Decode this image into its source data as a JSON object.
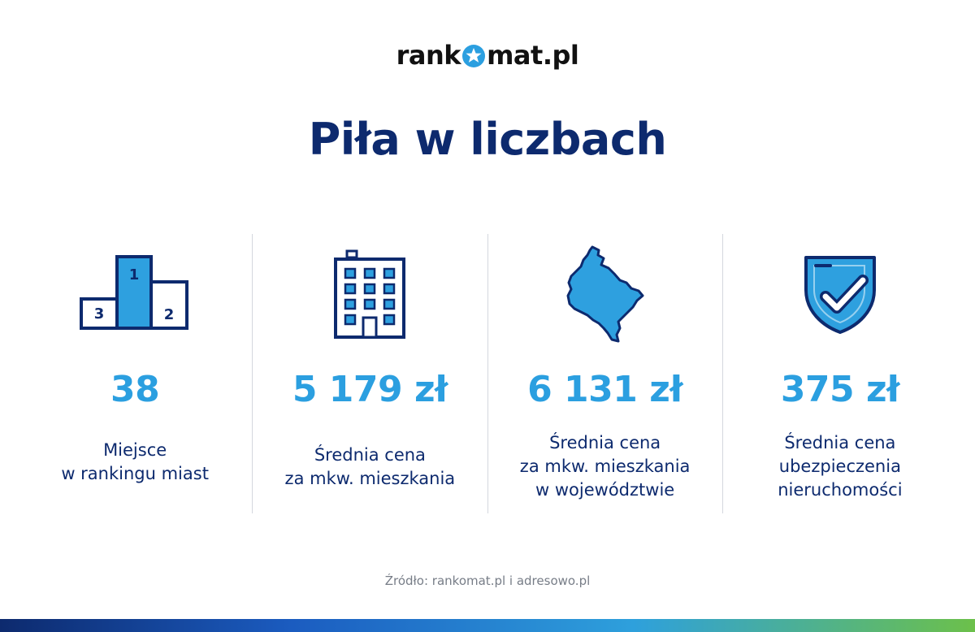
{
  "brand": {
    "logo_left": "rank",
    "logo_right": "mat.pl",
    "star_color": "#2b9fe0"
  },
  "title": "Piła w liczbach",
  "stats": [
    {
      "icon": "podium-icon",
      "value": "38",
      "lines": [
        "Miejsce",
        "w rankingu miast"
      ]
    },
    {
      "icon": "building-icon",
      "value": "5 179 zł",
      "lines": [
        "Średnia cena",
        "za mkw. mieszkania"
      ]
    },
    {
      "icon": "region-map-icon",
      "value": "6 131 zł",
      "lines": [
        "Średnia cena",
        "za mkw. mieszkania",
        "w województwie"
      ]
    },
    {
      "icon": "shield-check-icon",
      "value": "375 zł",
      "lines": [
        "Średnia cena",
        "ubezpieczenia",
        "nieruchomości"
      ]
    }
  ],
  "source": "Źródło: rankomat.pl i adresowo.pl",
  "colors": {
    "navy": "#0d2a6e",
    "accent": "#2b9fe0"
  }
}
